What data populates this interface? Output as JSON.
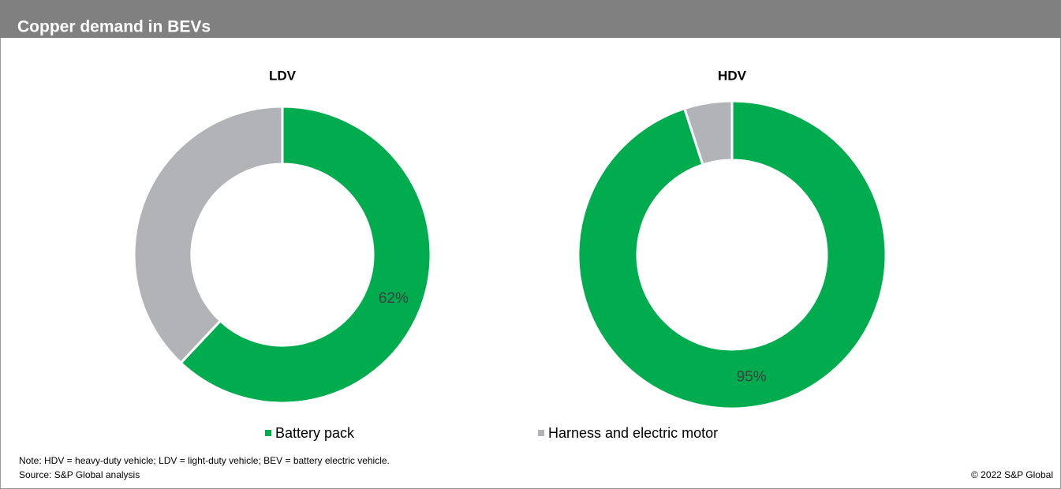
{
  "header": {
    "title": "Copper demand in BEVs"
  },
  "chart_data": [
    {
      "type": "pie",
      "donut": true,
      "title": "LDV",
      "categories": [
        "Battery pack",
        "Harness and electric motor"
      ],
      "values": [
        62,
        38
      ],
      "value_labels": [
        "62%",
        null
      ],
      "colors": [
        "#00ac4e",
        "#b1b3b6"
      ]
    },
    {
      "type": "pie",
      "donut": true,
      "title": "HDV",
      "categories": [
        "Battery pack",
        "Harness and electric motor"
      ],
      "values": [
        95,
        5
      ],
      "value_labels": [
        "95%",
        null
      ],
      "colors": [
        "#00ac4e",
        "#b1b3b6"
      ]
    }
  ],
  "footer": {
    "note": "Note: HDV = heavy-duty vehicle; LDV = light-duty vehicle; BEV = battery electric vehicle.",
    "source": "Source: S&P Global analysis",
    "copyright": "© 2022 S&P Global"
  }
}
